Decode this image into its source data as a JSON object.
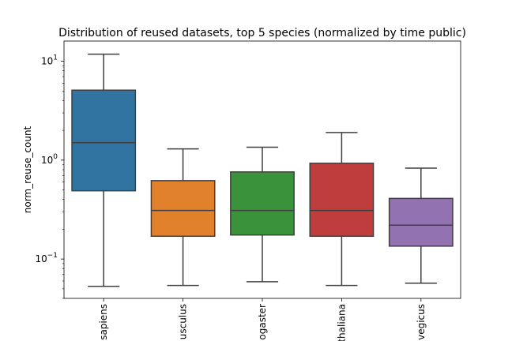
{
  "chart_data": {
    "type": "box",
    "title": "Distribution of reused datasets, top 5 species (normalized by time public)",
    "xlabel": "",
    "ylabel": "norm_reuse_count",
    "yscale": "log",
    "ylim": [
      0.04,
      16
    ],
    "yticks": [
      {
        "value": 0.1,
        "label": "10",
        "exp": "−1"
      },
      {
        "value": 1,
        "label": "10",
        "exp": "0"
      },
      {
        "value": 10,
        "label": "10",
        "exp": "1"
      }
    ],
    "categories": [
      "sapiens",
      "usculus",
      "ogaster",
      "thaliana",
      "vegicus"
    ],
    "series": [
      {
        "category": "sapiens",
        "whisker_low": 0.053,
        "q1": 0.49,
        "median": 1.5,
        "q3": 5.1,
        "whisker_high": 11.8,
        "color": "#3274a1"
      },
      {
        "category": "usculus",
        "whisker_low": 0.054,
        "q1": 0.17,
        "median": 0.31,
        "q3": 0.62,
        "whisker_high": 1.3,
        "color": "#e1812c"
      },
      {
        "category": "ogaster",
        "whisker_low": 0.059,
        "q1": 0.175,
        "median": 0.31,
        "q3": 0.76,
        "whisker_high": 1.35,
        "color": "#3a923a"
      },
      {
        "category": "thaliana",
        "whisker_low": 0.054,
        "q1": 0.17,
        "median": 0.31,
        "q3": 0.93,
        "whisker_high": 1.9,
        "color": "#c03d3e"
      },
      {
        "category": "vegicus",
        "whisker_low": 0.057,
        "q1": 0.135,
        "median": 0.22,
        "q3": 0.41,
        "whisker_high": 0.83,
        "color": "#9372b2"
      }
    ],
    "line_color": "#3f3f3f",
    "grid": false,
    "legend": "none"
  }
}
